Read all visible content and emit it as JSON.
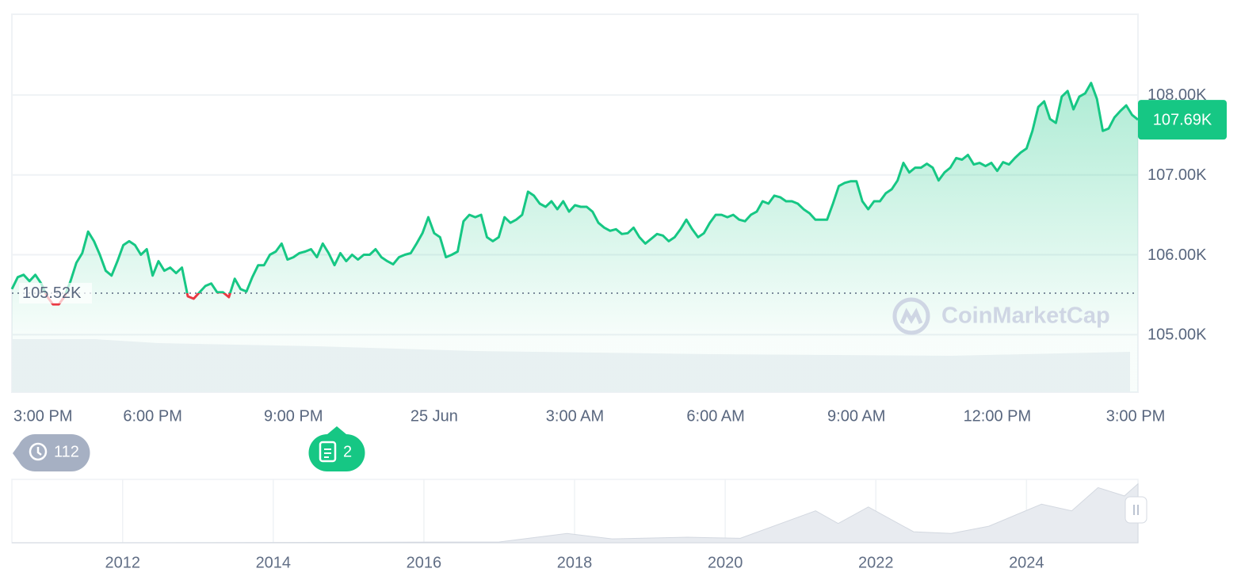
{
  "chart_data": [
    {
      "type": "line",
      "color_up": "#16c784",
      "color_down": "#ea3943",
      "ylim": [
        104.28,
        109.01
      ],
      "yticks": [
        {
          "value": 108,
          "label": "108.00K"
        },
        {
          "value": 107,
          "label": "107.00K"
        },
        {
          "value": 106,
          "label": "106.00K"
        },
        {
          "value": 105,
          "label": "105.00K"
        }
      ],
      "xtick_labels": [
        "3:00 PM",
        "6:00 PM",
        "9:00 PM",
        "25 Jun",
        "3:00 AM",
        "6:00 AM",
        "9:00 AM",
        "12:00 PM",
        "3:00 PM"
      ],
      "open": {
        "value": 105.52,
        "label": "105.52K"
      },
      "last": {
        "value": 107.69,
        "label": "107.69K"
      },
      "watermark": "CoinMarketCap",
      "history_count": 112,
      "news_count": 2,
      "values": [
        105.57,
        105.72,
        105.75,
        105.67,
        105.75,
        105.64,
        105.48,
        105.38,
        105.38,
        105.48,
        105.67,
        105.9,
        106.02,
        106.29,
        106.17,
        106.0,
        105.8,
        105.74,
        105.92,
        106.12,
        106.17,
        106.12,
        106.0,
        106.07,
        105.74,
        105.92,
        105.8,
        105.84,
        105.77,
        105.84,
        105.48,
        105.45,
        105.53,
        105.61,
        105.64,
        105.53,
        105.53,
        105.47,
        105.7,
        105.57,
        105.54,
        105.72,
        105.87,
        105.87,
        106.0,
        106.04,
        106.14,
        105.94,
        105.97,
        106.02,
        106.04,
        106.07,
        105.97,
        106.14,
        106.02,
        105.87,
        106.02,
        105.92,
        106.0,
        105.94,
        106.0,
        106.0,
        106.07,
        105.97,
        105.92,
        105.88,
        105.97,
        106.0,
        106.02,
        106.14,
        106.27,
        106.47,
        106.27,
        106.22,
        105.97,
        106.0,
        106.04,
        106.42,
        106.5,
        106.47,
        106.5,
        106.22,
        106.17,
        106.22,
        106.47,
        106.4,
        106.44,
        106.5,
        106.79,
        106.74,
        106.64,
        106.6,
        106.67,
        106.57,
        106.67,
        106.54,
        106.62,
        106.6,
        106.6,
        106.54,
        106.4,
        106.34,
        106.3,
        106.32,
        106.26,
        106.27,
        106.34,
        106.22,
        106.14,
        106.2,
        106.26,
        106.24,
        106.17,
        106.22,
        106.32,
        106.44,
        106.32,
        106.22,
        106.27,
        106.4,
        106.5,
        106.5,
        106.47,
        106.5,
        106.44,
        106.42,
        106.5,
        106.54,
        106.67,
        106.64,
        106.74,
        106.72,
        106.67,
        106.67,
        106.64,
        106.57,
        106.52,
        106.44,
        106.44,
        106.44,
        106.64,
        106.86,
        106.9,
        106.92,
        106.92,
        106.67,
        106.57,
        106.67,
        106.67,
        106.77,
        106.82,
        106.93,
        107.15,
        107.03,
        107.09,
        107.09,
        107.14,
        107.09,
        106.93,
        107.03,
        107.09,
        107.21,
        107.19,
        107.25,
        107.13,
        107.15,
        107.11,
        107.15,
        107.05,
        107.16,
        107.13,
        107.21,
        107.28,
        107.33,
        107.55,
        107.85,
        107.92,
        107.7,
        107.65,
        107.98,
        108.05,
        107.82,
        107.98,
        108.02,
        108.15,
        107.95,
        107.55,
        107.58,
        107.72,
        107.8,
        107.87,
        107.75,
        107.69
      ]
    },
    {
      "type": "area",
      "color": "#d3d8e0",
      "xlim": [
        2010.53,
        2025.48
      ],
      "ylim": [
        0,
        115
      ],
      "xticks": [
        2012,
        2014,
        2016,
        2018,
        2020,
        2022,
        2024
      ],
      "x": [
        2010.53,
        2013,
        2017,
        2017.9,
        2018.5,
        2019.5,
        2020.2,
        2021.2,
        2021.5,
        2021.9,
        2022.5,
        2023,
        2023.5,
        2024.2,
        2024.6,
        2024.95,
        2025.3,
        2025.48
      ],
      "values": [
        0,
        0.2,
        1.5,
        17,
        7,
        10,
        8,
        58,
        35,
        65,
        20,
        17,
        30,
        70,
        58,
        100,
        85,
        107
      ]
    }
  ]
}
